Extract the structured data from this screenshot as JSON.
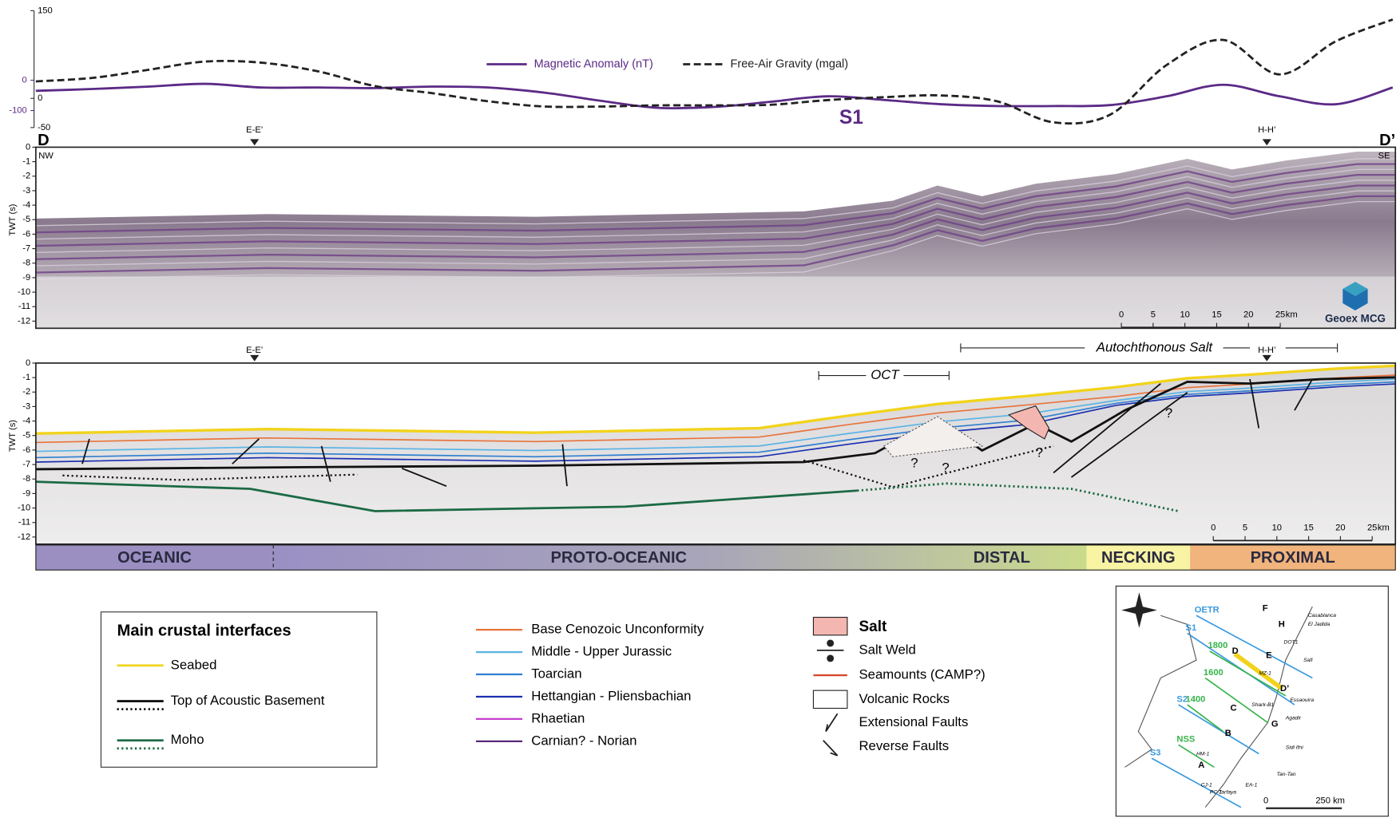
{
  "chart_data": {
    "type": "line",
    "annotation": "S1",
    "categories": [
      null,
      null,
      null,
      null,
      null,
      null,
      null,
      null,
      null,
      null,
      null,
      null,
      null,
      null,
      null,
      null,
      null,
      null,
      null,
      null,
      null,
      null,
      null,
      null,
      null
    ],
    "series": [
      {
        "name": "Magnetic Anomaly (nT)",
        "color": "#5b2a86",
        "axis": "y2",
        "values": [
          -35,
          -29,
          -21,
          -12,
          -24,
          -24,
          -26,
          -21,
          -24,
          -41,
          -68,
          -91,
          -88,
          -71,
          -53,
          -65,
          -79,
          -85,
          -85,
          -82,
          -53,
          -15,
          -53,
          -79,
          -24
        ]
      },
      {
        "name": "Free-Air Gravity (mgal)",
        "color": "#222222",
        "dash": true,
        "values": [
          29,
          35,
          49,
          63,
          61,
          46,
          21,
          9,
          -5,
          -14,
          -14,
          -12,
          -12,
          -11,
          -3,
          2,
          5,
          -5,
          -41,
          -28,
          57,
          100,
          41,
          98,
          135
        ]
      }
    ],
    "ylim": [
      -50,
      150
    ],
    "yticks": [
      -50,
      0,
      150
    ],
    "y2lim": [
      -156,
      229
    ],
    "y2ticks": [
      -100,
      0
    ]
  },
  "profile": {
    "start": "D",
    "end": "D’",
    "markers": [
      "E-E’",
      "H-H’"
    ]
  },
  "seismic": {
    "left": "NW",
    "right": "SE",
    "axis_label": "TWT (s)",
    "ticks": [
      "0",
      "-1",
      "-2",
      "-3",
      "-4",
      "-5",
      "-6",
      "-7",
      "-8",
      "-9",
      "-10",
      "-11",
      "-12"
    ],
    "scale": [
      "0",
      "5",
      "10",
      "15",
      "20",
      "25"
    ],
    "scale_unit": "km",
    "logo": "Geoex MCG"
  },
  "interpretation": {
    "axis_label": "TWT (s)",
    "ticks": [
      "0",
      "-1",
      "-2",
      "-3",
      "-4",
      "-5",
      "-6",
      "-7",
      "-8",
      "-9",
      "-10",
      "-11",
      "-12"
    ],
    "oct": "OCT",
    "salt": "Autochthonous Salt",
    "question": "?",
    "scale": [
      "0",
      "5",
      "10",
      "15",
      "20",
      "25"
    ],
    "scale_unit": "km"
  },
  "domains": [
    {
      "label": "OCEANIC",
      "color": "#9b8fc2"
    },
    {
      "label": "PROTO-OCEANIC",
      "color": "#a29ac6"
    },
    {
      "label": "DISTAL",
      "color": "#cbdb8c"
    },
    {
      "label": "NECKING",
      "color": "#f8f4a4"
    },
    {
      "label": "PROXIMAL",
      "color": "#f1b47c"
    }
  ],
  "legend_interfaces": {
    "title": "Main crustal interfaces",
    "items": [
      {
        "label": "Seabed",
        "color": "#f2d31b"
      },
      {
        "label": "Top of Acoustic Basement",
        "color": "#111111"
      },
      {
        "label": "Moho",
        "color": "#1c6a45"
      }
    ]
  },
  "legend_horizons": [
    {
      "label": "Base Cenozoic Unconformity",
      "color": "#e8743b"
    },
    {
      "label": "Middle - Upper Jurassic",
      "color": "#5ab4e5"
    },
    {
      "label": "Toarcian",
      "color": "#2f7fd0"
    },
    {
      "label": "Hettangian - Pliensbachian",
      "color": "#1a2fb0"
    },
    {
      "label": "Rhaetian",
      "color": "#c43fd0"
    },
    {
      "label": "Carnian? - Norian",
      "color": "#5a2a7a"
    }
  ],
  "legend_symbols": [
    "Salt",
    "Salt Weld",
    "Seamounts (CAMP?)",
    "Volcanic Rocks",
    "Extensional Faults",
    "Reverse Faults"
  ],
  "map": {
    "lines": [
      "OETR",
      "S1",
      "S2",
      "S3",
      "NSS",
      "1800",
      "1600",
      "1400"
    ],
    "points": [
      "D",
      "D’",
      "E",
      "C",
      "B",
      "A",
      "F",
      "H",
      "G"
    ],
    "wells": [
      "Casablanca",
      "El Jadida",
      "Safi",
      "Essaouira",
      "Agadir",
      "Sidi Ifni",
      "Tan-Tan",
      "Tarfaya",
      "MZ-1",
      "Shark-B1",
      "HM-1",
      "CJ-1",
      "PC-1",
      "EA-1",
      "DOT1"
    ],
    "scale": [
      "0",
      "250 km"
    ]
  }
}
